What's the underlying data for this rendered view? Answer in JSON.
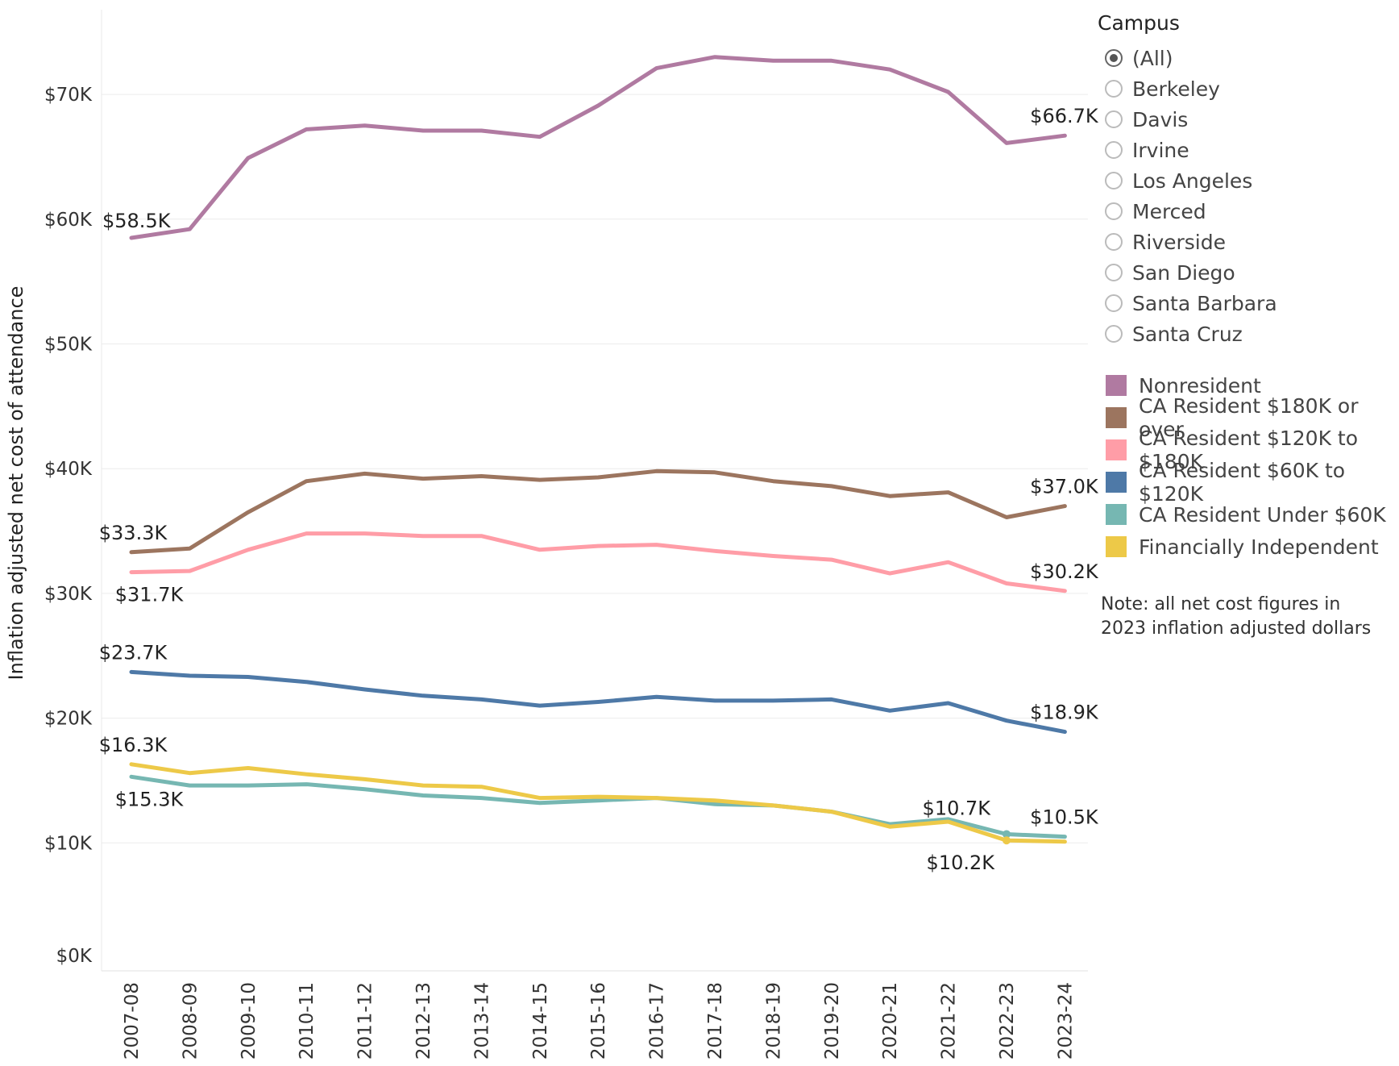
{
  "filter": {
    "title": "Campus",
    "selected": "(All)",
    "options": [
      "(All)",
      "Berkeley",
      "Davis",
      "Irvine",
      "Los Angeles",
      "Merced",
      "Riverside",
      "San Diego",
      "Santa Barbara",
      "Santa Cruz"
    ]
  },
  "note": "Note: all net cost figures in 2023 inflation adjusted dollars",
  "chart_data": {
    "type": "line",
    "title": "",
    "xlabel": "",
    "ylabel": "Inflation adjusted net cost of attendance",
    "ylim": [
      0,
      75
    ],
    "y_unit": "thousands of dollars",
    "y_ticks": [
      {
        "value": 0,
        "label": "$0K"
      },
      {
        "value": 10,
        "label": "$10K"
      },
      {
        "value": 20,
        "label": "$20K"
      },
      {
        "value": 30,
        "label": "$30K"
      },
      {
        "value": 40,
        "label": "$40K"
      },
      {
        "value": 50,
        "label": "$50K"
      },
      {
        "value": 60,
        "label": "$60K"
      },
      {
        "value": 70,
        "label": "$70K"
      }
    ],
    "grid": true,
    "legend_position": "right",
    "categories": [
      "2007-08",
      "2008-09",
      "2009-10",
      "2010-11",
      "2011-12",
      "2012-13",
      "2013-14",
      "2014-15",
      "2015-16",
      "2016-17",
      "2017-18",
      "2018-19",
      "2019-20",
      "2020-21",
      "2021-22",
      "2022-23",
      "2023-24"
    ],
    "series": [
      {
        "name": "Nonresident",
        "color": "#b07aa1",
        "values": [
          58.5,
          59.2,
          64.9,
          67.2,
          67.5,
          67.1,
          67.1,
          66.6,
          69.1,
          72.1,
          73.0,
          72.7,
          72.7,
          72.0,
          70.2,
          66.1,
          66.7
        ],
        "labels": [
          {
            "index": 0,
            "text": "$58.5K",
            "pos": "above-right"
          },
          {
            "index": 16,
            "text": "$66.7K",
            "pos": "above"
          }
        ]
      },
      {
        "name": "CA Resident $180K or over",
        "color": "#9c755f",
        "values": [
          33.3,
          33.6,
          36.5,
          39.0,
          39.6,
          39.2,
          39.4,
          39.1,
          39.3,
          39.8,
          39.7,
          39.0,
          38.6,
          37.8,
          38.1,
          36.1,
          37.0
        ],
        "labels": [
          {
            "index": 0,
            "text": "$33.3K",
            "pos": "above"
          },
          {
            "index": 16,
            "text": "$37.0K",
            "pos": "above"
          }
        ]
      },
      {
        "name": "CA Resident $120K to $180K",
        "color": "#ff9da7",
        "values": [
          31.7,
          31.8,
          33.5,
          34.8,
          34.8,
          34.6,
          34.6,
          33.5,
          33.8,
          33.9,
          33.4,
          33.0,
          32.7,
          31.6,
          32.5,
          30.8,
          30.2
        ],
        "labels": [
          {
            "index": 0,
            "text": "$31.7K",
            "pos": "below"
          },
          {
            "index": 16,
            "text": "$30.2K",
            "pos": "above"
          }
        ]
      },
      {
        "name": "CA Resident $60K to $120K",
        "color": "#4e79a7",
        "values": [
          23.7,
          23.4,
          23.3,
          22.9,
          22.3,
          21.8,
          21.5,
          21.0,
          21.3,
          21.7,
          21.4,
          21.4,
          21.5,
          20.6,
          21.2,
          19.8,
          18.9
        ],
        "labels": [
          {
            "index": 0,
            "text": "$23.7K",
            "pos": "above"
          },
          {
            "index": 16,
            "text": "$18.9K",
            "pos": "above"
          }
        ]
      },
      {
        "name": "CA Resident Under $60K",
        "color": "#76b7b2",
        "values": [
          15.3,
          14.6,
          14.6,
          14.7,
          14.3,
          13.8,
          13.6,
          13.2,
          13.4,
          13.6,
          13.1,
          13.0,
          12.5,
          11.5,
          11.9,
          10.7,
          10.5
        ],
        "labels": [
          {
            "index": 0,
            "text": "$15.3K",
            "pos": "below"
          },
          {
            "index": 15,
            "text": "$10.7K",
            "pos": "above-left"
          },
          {
            "index": 16,
            "text": "$10.5K",
            "pos": "above"
          }
        ]
      },
      {
        "name": "Financially Independent",
        "color": "#edc948",
        "values": [
          16.3,
          15.6,
          16.0,
          15.5,
          15.1,
          14.6,
          14.5,
          13.6,
          13.7,
          13.6,
          13.4,
          13.0,
          12.5,
          11.3,
          11.7,
          10.2,
          10.1
        ],
        "labels": [
          {
            "index": 0,
            "text": "$16.3K",
            "pos": "above"
          },
          {
            "index": 15,
            "text": "$10.2K",
            "pos": "below-left"
          }
        ]
      }
    ]
  }
}
